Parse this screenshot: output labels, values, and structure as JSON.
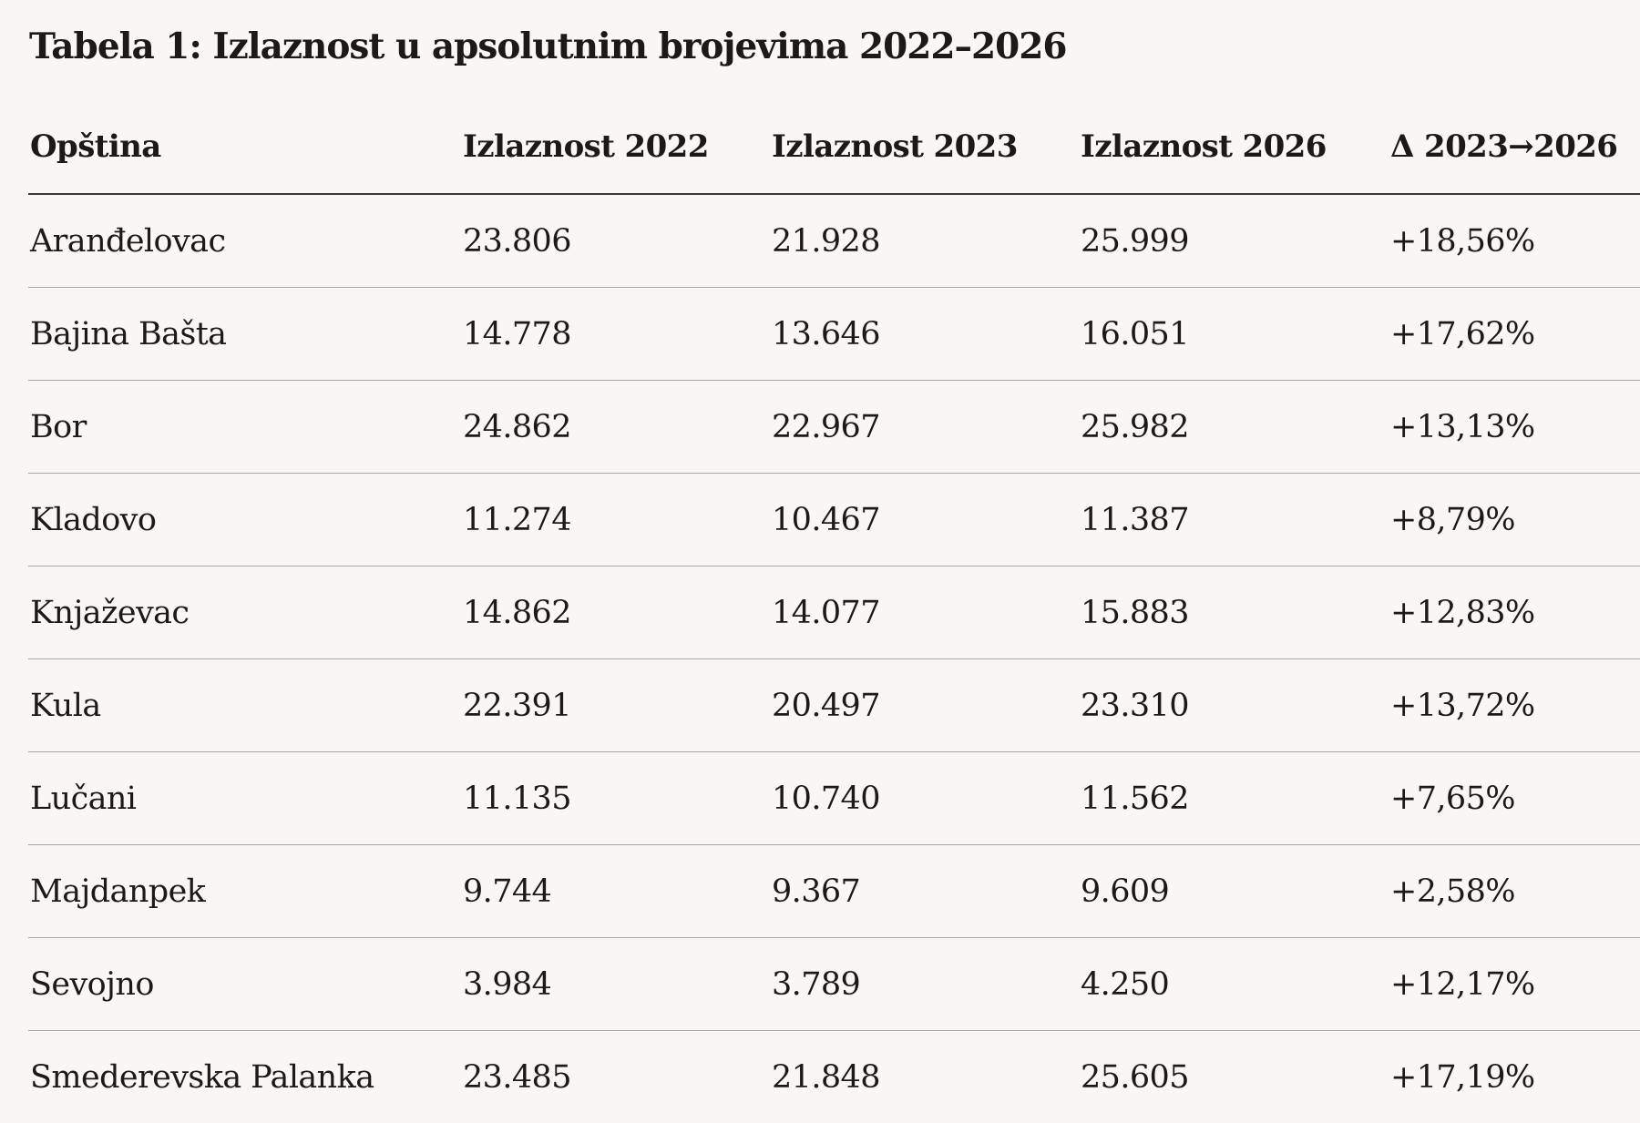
{
  "title": "Tabela 1: Izlaznost u apsolutnim brojevima 2022–2026",
  "columns": [
    "Opština",
    "Izlaznost 2022",
    "Izlaznost 2023",
    "Izlaznost 2026",
    "Δ 2023→2026"
  ],
  "rows": [
    [
      "Aranđelovac",
      "23.806",
      "21.928",
      "25.999",
      "+18,56%"
    ],
    [
      "Bajina Bašta",
      "14.778",
      "13.646",
      "16.051",
      "+17,62%"
    ],
    [
      "Bor",
      "24.862",
      "22.967",
      "25.982",
      "+13,13%"
    ],
    [
      "Kladovo",
      "11.274",
      "10.467",
      "11.387",
      "+8,79%"
    ],
    [
      "Knjaževac",
      "14.862",
      "14.077",
      "15.883",
      "+12,83%"
    ],
    [
      "Kula",
      "22.391",
      "20.497",
      "23.310",
      "+13,72%"
    ],
    [
      "Lučani",
      "11.135",
      "10.740",
      "11.562",
      "+7,65%"
    ],
    [
      "Majdanpek",
      "9.744",
      "9.367",
      "9.609",
      "+2,58%"
    ],
    [
      "Sevojno",
      "3.984",
      "3.789",
      "4.250",
      "+12,17%"
    ],
    [
      "Smederevska Palanka",
      "23.485",
      "21.848",
      "25.605",
      "+17,19%"
    ]
  ]
}
